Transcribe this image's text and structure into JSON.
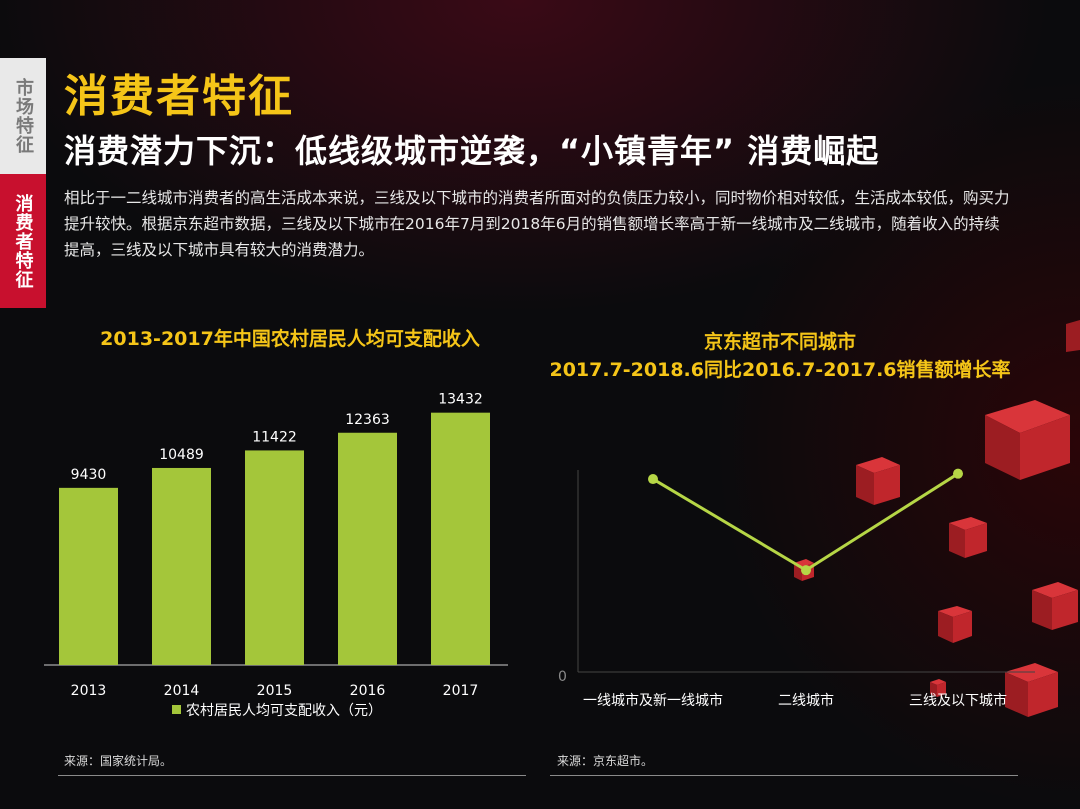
{
  "sidebar": {
    "tab_market": "市场特征",
    "tab_consumer": "消费者特征"
  },
  "header": {
    "title": "消费者特征",
    "subtitle": "消费潜力下沉：低线级城市逆袭，“小镇青年” 消费崛起"
  },
  "body_text": "相比于一二线城市消费者的高生活成本来说，三线及以下城市的消费者所面对的负债压力较小，同时物价相对较低，生活成本较低，购买力提升较快。根据京东超市数据，三线及以下城市在2016年7月到2018年6月的销售额增长率高于新一线城市及二线城市，随着收入的持续提高，三线及以下城市具有较大的消费潜力。",
  "colors": {
    "bar": "#a4c63a",
    "line": "#b6d646",
    "accent_yellow": "#f5c518",
    "accent_red": "#c8102e"
  },
  "chart_data": [
    {
      "type": "bar",
      "title": "2013-2017年中国农村居民人均可支配收入",
      "categories": [
        "2013",
        "2014",
        "2015",
        "2016",
        "2017"
      ],
      "series": [
        {
          "name": "农村居民人均可支配收入（元）",
          "values": [
            9430,
            10489,
            11422,
            12363,
            13432
          ]
        }
      ],
      "data_labels": [
        "9430",
        "10489",
        "11422",
        "12363",
        "13432"
      ],
      "ylim": [
        0,
        14000
      ],
      "legend": "bottom",
      "grid": false,
      "source": "来源：国家统计局。"
    },
    {
      "type": "line",
      "title": "京东超市不同城市\n2017.7-2018.6同比2016.7-2017.6销售额增长率",
      "title_line1": "京东超市不同城市",
      "title_line2": "2017.7-2018.6同比2016.7-2017.6销售额增长率",
      "categories": [
        "一线城市及新一线城市",
        "二线城市",
        "三线及以下城市"
      ],
      "values": [
        0.72,
        0.38,
        0.74
      ],
      "y_tick_label": "0",
      "ylim": [
        0,
        1
      ],
      "grid": false,
      "source": "来源：京东超市。"
    }
  ]
}
